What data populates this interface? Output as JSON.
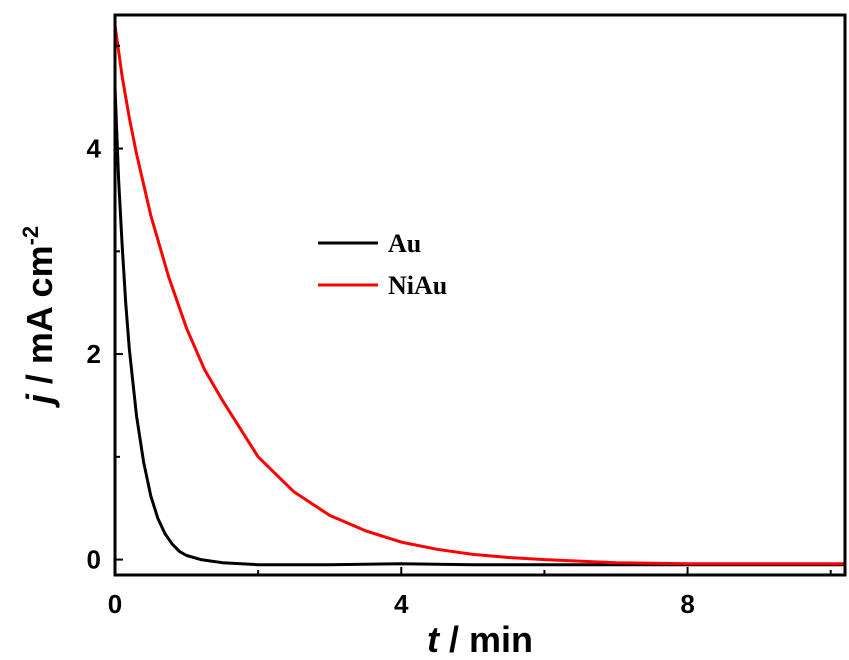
{
  "chart_data": {
    "type": "line",
    "xlabel": {
      "italic": "t",
      "rest": " / min"
    },
    "ylabel": {
      "italic": "j",
      "rest": " / mA cm",
      "sup": "-2"
    },
    "xlim": [
      0,
      10.2
    ],
    "ylim": [
      -0.15,
      5.3
    ],
    "xticks": [
      0,
      4,
      8
    ],
    "yticks": [
      0,
      2,
      4
    ],
    "legend_position": "center-left",
    "grid": false,
    "series": [
      {
        "name": "Au",
        "color": "#000000",
        "x": [
          0,
          0.05,
          0.1,
          0.15,
          0.2,
          0.3,
          0.4,
          0.5,
          0.6,
          0.7,
          0.8,
          0.9,
          1.0,
          1.2,
          1.5,
          2.0,
          2.5,
          3.0,
          4.0,
          5.0,
          6.0,
          7.0,
          8.0,
          9.0,
          10.2
        ],
        "y": [
          4.6,
          3.7,
          3.05,
          2.5,
          2.05,
          1.4,
          0.95,
          0.62,
          0.4,
          0.25,
          0.15,
          0.08,
          0.04,
          0.0,
          -0.03,
          -0.05,
          -0.05,
          -0.05,
          -0.04,
          -0.05,
          -0.05,
          -0.05,
          -0.05,
          -0.05,
          -0.05
        ]
      },
      {
        "name": "NiAu",
        "color": "#ff0000",
        "x": [
          0,
          0.1,
          0.2,
          0.3,
          0.5,
          0.75,
          1.0,
          1.25,
          1.5,
          2.0,
          2.5,
          3.0,
          3.5,
          4.0,
          4.5,
          5.0,
          5.5,
          6.0,
          7.0,
          8.0,
          9.0,
          10.2
        ],
        "y": [
          5.2,
          4.7,
          4.3,
          3.95,
          3.35,
          2.75,
          2.25,
          1.85,
          1.55,
          1.0,
          0.66,
          0.43,
          0.28,
          0.17,
          0.1,
          0.05,
          0.02,
          0.0,
          -0.03,
          -0.04,
          -0.04,
          -0.04
        ]
      }
    ]
  }
}
